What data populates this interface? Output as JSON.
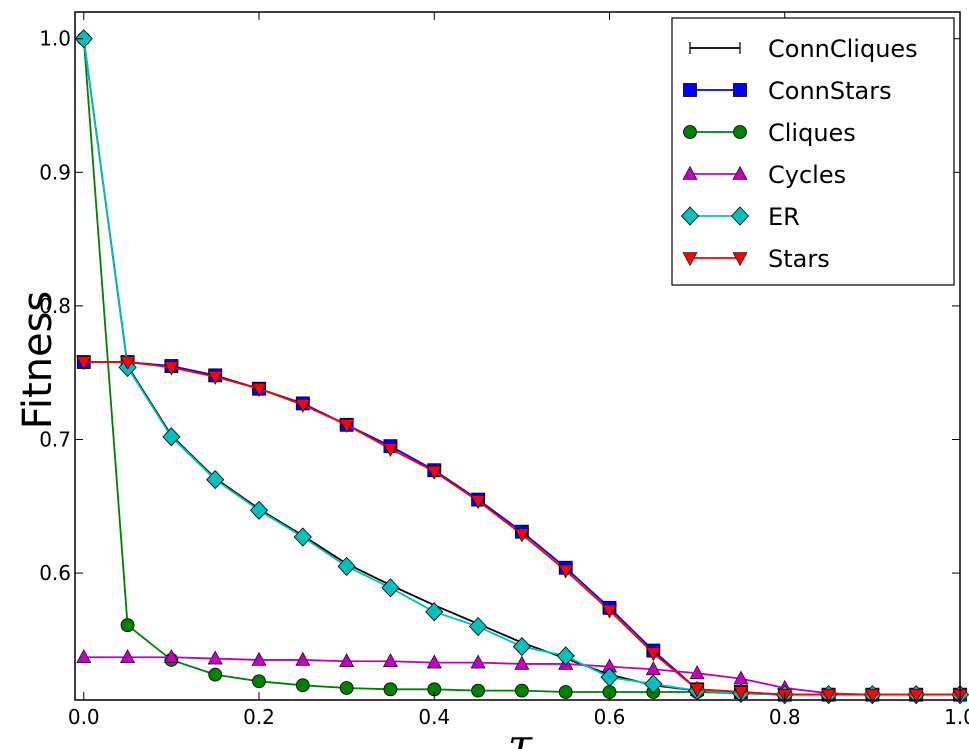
{
  "chart_data": {
    "type": "line",
    "title": "",
    "xlabel": "τ",
    "ylabel": "Fitness",
    "xlim": [
      -0.01,
      1.0
    ],
    "ylim": [
      0.505,
      1.02
    ],
    "x_ticks": [
      0.0,
      0.2,
      0.4,
      0.6,
      0.8,
      1.0
    ],
    "x_tick_labels": [
      "0.0",
      "0.2",
      "0.4",
      "0.6",
      "0.8",
      "1.0"
    ],
    "y_ticks": [
      0.6,
      0.7,
      0.8,
      0.9,
      1.0
    ],
    "y_tick_labels": [
      "0.6",
      "0.7",
      "0.8",
      "0.9",
      "1.0"
    ],
    "grid": false,
    "legend_position": "top-right",
    "x": [
      0.0,
      0.05,
      0.1,
      0.15,
      0.2,
      0.25,
      0.3,
      0.35,
      0.4,
      0.45,
      0.5,
      0.55,
      0.6,
      0.65,
      0.7,
      0.75,
      0.8,
      0.85,
      0.9,
      0.95,
      1.0
    ],
    "series": [
      {
        "name": "ConnCliques",
        "color": "#000000",
        "marker": "errorbar",
        "values": [
          1.0,
          0.755,
          0.703,
          0.671,
          0.648,
          0.628,
          0.607,
          0.591,
          0.576,
          0.562,
          0.548,
          0.536,
          0.524,
          0.516,
          0.512,
          0.51,
          0.509,
          0.509,
          0.509,
          0.509,
          0.509
        ]
      },
      {
        "name": "ConnStars",
        "color": "#0000ff",
        "marker": "square",
        "values": [
          0.758,
          0.758,
          0.755,
          0.748,
          0.738,
          0.727,
          0.711,
          0.695,
          0.677,
          0.655,
          0.631,
          0.604,
          0.574,
          0.542,
          0.513,
          0.511,
          0.509,
          0.509,
          0.509,
          0.509,
          0.509
        ]
      },
      {
        "name": "Cliques",
        "color": "#008000",
        "marker": "circle",
        "values": [
          1.0,
          0.561,
          0.535,
          0.524,
          0.519,
          0.516,
          0.514,
          0.513,
          0.513,
          0.512,
          0.512,
          0.511,
          0.511,
          0.511,
          0.511,
          0.51,
          0.509,
          0.509,
          0.509,
          0.509,
          0.509
        ]
      },
      {
        "name": "Cycles",
        "color": "#bf00bf",
        "marker": "triangle-up",
        "values": [
          0.537,
          0.537,
          0.537,
          0.536,
          0.535,
          0.535,
          0.534,
          0.534,
          0.533,
          0.533,
          0.532,
          0.532,
          0.53,
          0.528,
          0.525,
          0.521,
          0.514,
          0.51,
          0.509,
          0.509,
          0.509
        ]
      },
      {
        "name": "ER",
        "color": "#00bfbf",
        "marker": "diamond",
        "values": [
          1.0,
          0.754,
          0.702,
          0.67,
          0.647,
          0.627,
          0.605,
          0.589,
          0.571,
          0.56,
          0.545,
          0.538,
          0.522,
          0.517,
          0.512,
          0.51,
          0.509,
          0.509,
          0.509,
          0.509,
          0.509
        ]
      },
      {
        "name": "Stars",
        "color": "#ff0000",
        "marker": "triangle-down",
        "values": [
          0.758,
          0.758,
          0.754,
          0.747,
          0.738,
          0.726,
          0.711,
          0.693,
          0.676,
          0.654,
          0.629,
          0.602,
          0.572,
          0.54,
          0.513,
          0.511,
          0.509,
          0.509,
          0.509,
          0.509,
          0.509
        ]
      }
    ]
  }
}
